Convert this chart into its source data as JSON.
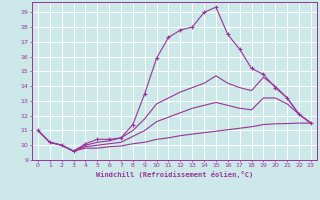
{
  "xlabel": "Windchill (Refroidissement éolien,°C)",
  "bg_color": "#cce8e8",
  "grid_color": "#ffffff",
  "line_color": "#993399",
  "xlim": [
    -0.5,
    23.5
  ],
  "ylim": [
    9.0,
    19.7
  ],
  "xticks": [
    0,
    1,
    2,
    3,
    4,
    5,
    6,
    7,
    8,
    9,
    10,
    11,
    12,
    13,
    14,
    15,
    16,
    17,
    18,
    19,
    20,
    21,
    22,
    23
  ],
  "yticks": [
    9,
    10,
    11,
    12,
    13,
    14,
    15,
    16,
    17,
    18,
    19
  ],
  "lines": [
    {
      "x": [
        0,
        1,
        2,
        3,
        4,
        5,
        6,
        7,
        8,
        9,
        10,
        11,
        12,
        13,
        14,
        15,
        16,
        17,
        18,
        19,
        20,
        21,
        22,
        23
      ],
      "y": [
        11.0,
        10.2,
        10.0,
        9.6,
        10.1,
        10.4,
        10.4,
        10.5,
        11.4,
        13.5,
        15.9,
        17.3,
        17.8,
        18.0,
        19.0,
        19.35,
        17.5,
        16.5,
        15.2,
        14.8,
        13.9,
        13.2,
        12.1,
        11.5
      ],
      "marker": "+"
    },
    {
      "x": [
        0,
        1,
        2,
        3,
        4,
        5,
        6,
        7,
        8,
        9,
        10,
        11,
        12,
        13,
        14,
        15,
        16,
        17,
        18,
        19,
        20,
        21,
        22,
        23
      ],
      "y": [
        11.0,
        10.2,
        10.0,
        9.6,
        10.0,
        10.2,
        10.3,
        10.5,
        11.0,
        11.8,
        12.8,
        13.2,
        13.6,
        13.9,
        14.2,
        14.7,
        14.2,
        13.9,
        13.7,
        14.6,
        14.0,
        13.2,
        12.1,
        11.5
      ],
      "marker": null
    },
    {
      "x": [
        0,
        1,
        2,
        3,
        4,
        5,
        6,
        7,
        8,
        9,
        10,
        11,
        12,
        13,
        14,
        15,
        16,
        17,
        18,
        19,
        20,
        21,
        22,
        23
      ],
      "y": [
        11.0,
        10.2,
        10.0,
        9.6,
        9.9,
        10.0,
        10.1,
        10.2,
        10.6,
        11.0,
        11.6,
        11.9,
        12.2,
        12.5,
        12.7,
        12.9,
        12.7,
        12.5,
        12.4,
        13.2,
        13.2,
        12.8,
        12.1,
        11.5
      ],
      "marker": null
    },
    {
      "x": [
        0,
        1,
        2,
        3,
        4,
        5,
        6,
        7,
        8,
        9,
        10,
        11,
        12,
        13,
        14,
        15,
        16,
        17,
        18,
        19,
        20,
        21,
        22,
        23
      ],
      "y": [
        11.0,
        10.2,
        10.0,
        9.6,
        9.8,
        9.8,
        9.9,
        9.95,
        10.1,
        10.2,
        10.4,
        10.5,
        10.65,
        10.75,
        10.85,
        10.95,
        11.05,
        11.15,
        11.25,
        11.4,
        11.45,
        11.47,
        11.5,
        11.5
      ],
      "marker": null
    }
  ]
}
